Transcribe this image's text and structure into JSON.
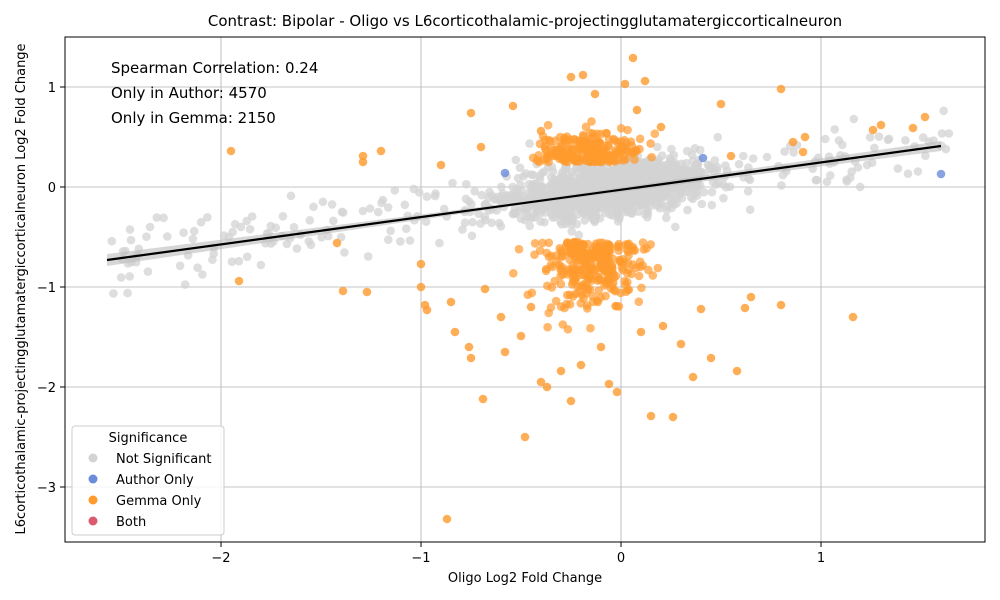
{
  "chart_data": {
    "type": "scatter",
    "title": "Contrast: Bipolar - Oligo vs L6corticothalamic-projectingglutamatergiccorticalneuron",
    "xlabel": "Oligo Log2 Fold Change",
    "ylabel": "L6corticothalamic-projectingglutamatergiccorticalneuron Log2 Fold Change",
    "xlim": [
      -2.78,
      1.82
    ],
    "ylim": [
      -3.55,
      1.5
    ],
    "x_ticks": [
      -2,
      -1,
      0,
      1
    ],
    "y_ticks": [
      -3,
      -2,
      -1,
      0,
      1
    ],
    "grid": true,
    "annotations": [
      "Spearman Correlation: 0.24",
      "Only in Author: 4570",
      "Only in Gemma: 2150"
    ],
    "legend": {
      "title": "Significance",
      "position": "lower-left",
      "entries": [
        {
          "label": "Not Significant",
          "color": "#d3d3d3"
        },
        {
          "label": "Author Only",
          "color": "#6b8cdb"
        },
        {
          "label": "Gemma Only",
          "color": "#ff9a2e"
        },
        {
          "label": "Both",
          "color": "#dc5a6e"
        }
      ]
    },
    "regression_line": {
      "x": [
        -2.57,
        1.6
      ],
      "y": [
        -0.73,
        0.41
      ]
    },
    "series": [
      {
        "name": "Author Only",
        "color": "#6b8cdb",
        "points": [
          [
            1.6,
            0.13
          ],
          [
            -0.58,
            0.14
          ],
          [
            0.41,
            0.29
          ]
        ]
      },
      {
        "name": "Gemma Only",
        "color": "#ff9a2e",
        "points": [
          [
            -1.95,
            0.36
          ],
          [
            -1.91,
            -0.94
          ],
          [
            -1.42,
            -0.56
          ],
          [
            -1.39,
            -1.04
          ],
          [
            -1.29,
            0.31
          ],
          [
            -1.29,
            0.25
          ],
          [
            -1.27,
            -1.05
          ],
          [
            -1.2,
            0.36
          ],
          [
            -1.0,
            -0.77
          ],
          [
            -1.0,
            -1.0
          ],
          [
            -0.98,
            -1.18
          ],
          [
            -0.97,
            -1.23
          ],
          [
            -0.87,
            -3.32
          ],
          [
            -0.85,
            -1.15
          ],
          [
            -0.83,
            -1.45
          ],
          [
            -0.76,
            -1.6
          ],
          [
            -0.75,
            -1.71
          ],
          [
            -0.75,
            0.74
          ],
          [
            -0.69,
            -2.12
          ],
          [
            -0.68,
            -1.02
          ],
          [
            -0.6,
            -1.3
          ],
          [
            -0.58,
            -1.65
          ],
          [
            -0.54,
            0.81
          ],
          [
            -0.5,
            -1.49
          ],
          [
            -0.48,
            -2.5
          ],
          [
            -0.4,
            -1.95
          ],
          [
            -0.37,
            -2.0
          ],
          [
            -0.32,
            0.33
          ],
          [
            -0.3,
            -1.84
          ],
          [
            -0.25,
            -2.14
          ],
          [
            -0.25,
            1.1
          ],
          [
            -0.19,
            1.12
          ],
          [
            -0.13,
            0.93
          ],
          [
            -0.1,
            -0.78
          ],
          [
            -0.06,
            -1.97
          ],
          [
            -0.02,
            -2.05
          ],
          [
            0.02,
            1.03
          ],
          [
            0.06,
            1.29
          ],
          [
            0.08,
            0.77
          ],
          [
            0.12,
            1.06
          ],
          [
            0.15,
            -2.29
          ],
          [
            0.21,
            -1.39
          ],
          [
            0.26,
            -2.3
          ],
          [
            0.36,
            -1.9
          ],
          [
            0.4,
            -1.22
          ],
          [
            0.45,
            -1.71
          ],
          [
            0.5,
            0.83
          ],
          [
            0.55,
            0.31
          ],
          [
            0.58,
            -1.84
          ],
          [
            0.62,
            -1.21
          ],
          [
            0.65,
            -1.1
          ],
          [
            0.8,
            0.98
          ],
          [
            0.8,
            -1.18
          ],
          [
            0.86,
            0.45
          ],
          [
            0.91,
            0.35
          ],
          [
            0.92,
            0.5
          ],
          [
            1.16,
            -1.3
          ],
          [
            1.26,
            0.57
          ],
          [
            1.3,
            0.62
          ],
          [
            1.46,
            0.59
          ],
          [
            1.52,
            0.7
          ],
          [
            -0.9,
            0.22
          ],
          [
            -0.7,
            0.4
          ],
          [
            -0.4,
            0.56
          ],
          [
            0.2,
            0.6
          ],
          [
            -0.2,
            -1.78
          ],
          [
            -0.1,
            -1.6
          ],
          [
            0.1,
            -1.45
          ],
          [
            0.3,
            -1.57
          ],
          [
            -0.45,
            -1.2
          ]
        ]
      }
    ]
  }
}
